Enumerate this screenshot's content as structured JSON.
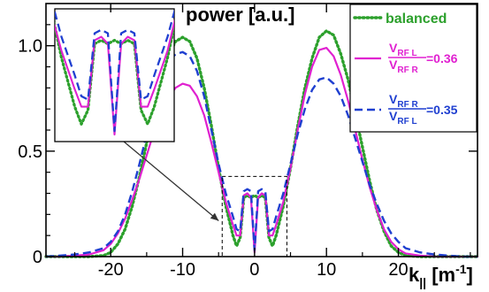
{
  "chart_data": {
    "type": "line",
    "title": "power [a.u.]",
    "xlabel": "k",
    "xlabel_sub": "||",
    "xlabel_unit_open": " [m",
    "xlabel_unit_sup": "-1",
    "xlabel_unit_close": "]",
    "ylabel": "",
    "xlim": [
      -29,
      31
    ],
    "ylim": [
      0,
      1.2
    ],
    "xticks": [
      -20,
      -10,
      0,
      10,
      20
    ],
    "yticks": [
      0,
      0.5,
      1.0
    ],
    "ytick_labels": [
      "0",
      "0.5",
      "1.0"
    ],
    "grid": false,
    "legend_position": "top-right",
    "colors": {
      "balanced": "#2ca02c",
      "ratio036": "#e020d0",
      "ratio035": "#1f3fd0",
      "annotation": "#333333"
    },
    "legend": {
      "balanced": "balanced",
      "ratio036": {
        "num_main": "V",
        "num_sub": "RF L",
        "den_main": "V",
        "den_sub": "RF R",
        "suffix": "=0.36"
      },
      "ratio035": {
        "num_main": "V",
        "num_sub": "RF R",
        "den_main": "V",
        "den_sub": "RF L",
        "suffix": "=0.35"
      }
    },
    "series": [
      {
        "key": "balanced",
        "name": "balanced",
        "style": "dotted",
        "x": [
          -29,
          -27,
          -25,
          -23,
          -21,
          -20,
          -19,
          -18,
          -17,
          -16,
          -15,
          -14,
          -13,
          -12,
          -11,
          -10,
          -9,
          -8,
          -7,
          -6,
          -5,
          -4,
          -3,
          -2.5,
          -2,
          -1.5,
          -1,
          -0.5,
          0,
          0.5,
          1,
          1.5,
          2,
          2.5,
          3,
          4,
          5,
          6,
          7,
          8,
          9,
          10,
          11,
          12,
          13,
          14,
          15,
          16,
          17,
          18,
          19,
          20,
          21,
          23,
          25,
          27,
          29,
          31
        ],
        "y": [
          0,
          0,
          0,
          0,
          0.005,
          0.02,
          0.06,
          0.13,
          0.24,
          0.38,
          0.54,
          0.7,
          0.84,
          0.95,
          1.02,
          1.04,
          1.02,
          0.94,
          0.8,
          0.62,
          0.42,
          0.24,
          0.1,
          0.05,
          0.09,
          0.28,
          0.29,
          0.28,
          0.29,
          0.28,
          0.29,
          0.28,
          0.09,
          0.05,
          0.1,
          0.24,
          0.42,
          0.62,
          0.8,
          0.94,
          1.04,
          1.07,
          1.05,
          0.96,
          0.84,
          0.68,
          0.52,
          0.36,
          0.22,
          0.12,
          0.05,
          0.02,
          0.005,
          0,
          0,
          0,
          0,
          0
        ]
      },
      {
        "key": "ratio036",
        "name": "V_RF L / V_RF R = 0.36",
        "style": "solid",
        "x": [
          -29,
          -27,
          -25,
          -23,
          -21,
          -20,
          -19,
          -18,
          -17,
          -16,
          -15,
          -14,
          -13,
          -12,
          -11,
          -10,
          -9,
          -8,
          -7,
          -6,
          -5,
          -4,
          -3,
          -2.5,
          -2,
          -1.5,
          -1,
          -0.5,
          0,
          0.5,
          1,
          1.5,
          2,
          2.5,
          3,
          4,
          5,
          6,
          7,
          8,
          9,
          10,
          11,
          12,
          13,
          14,
          15,
          16,
          17,
          18,
          19,
          20,
          21,
          23,
          25,
          27,
          29,
          31
        ],
        "y": [
          0,
          0,
          0.005,
          0.01,
          0.03,
          0.06,
          0.11,
          0.18,
          0.27,
          0.37,
          0.48,
          0.59,
          0.68,
          0.75,
          0.8,
          0.82,
          0.81,
          0.76,
          0.67,
          0.54,
          0.4,
          0.26,
          0.15,
          0.1,
          0.1,
          0.29,
          0.3,
          0.28,
          0.02,
          0.28,
          0.3,
          0.29,
          0.1,
          0.1,
          0.15,
          0.26,
          0.42,
          0.6,
          0.77,
          0.9,
          0.98,
          0.99,
          0.95,
          0.86,
          0.74,
          0.6,
          0.46,
          0.33,
          0.22,
          0.13,
          0.07,
          0.035,
          0.015,
          0.005,
          0,
          0,
          0,
          0
        ]
      },
      {
        "key": "ratio035",
        "name": "V_RF R / V_RF L = 0.35",
        "style": "dashed",
        "x": [
          -29,
          -27,
          -25,
          -23,
          -21,
          -20,
          -19,
          -18,
          -17,
          -16,
          -15,
          -14,
          -13,
          -12,
          -11,
          -10,
          -9,
          -8,
          -7,
          -6,
          -5,
          -4,
          -3,
          -2.5,
          -2,
          -1.5,
          -1,
          -0.5,
          0,
          0.5,
          1,
          1.5,
          2,
          2.5,
          3,
          4,
          5,
          6,
          7,
          8,
          9,
          10,
          11,
          12,
          13,
          14,
          15,
          16,
          17,
          18,
          19,
          20,
          21,
          23,
          25,
          27,
          29,
          31
        ],
        "y": [
          0,
          0.005,
          0.01,
          0.02,
          0.04,
          0.07,
          0.12,
          0.2,
          0.31,
          0.44,
          0.58,
          0.72,
          0.84,
          0.92,
          0.96,
          0.97,
          0.95,
          0.88,
          0.76,
          0.6,
          0.44,
          0.3,
          0.19,
          0.13,
          0.12,
          0.31,
          0.32,
          0.31,
          0.03,
          0.31,
          0.32,
          0.31,
          0.12,
          0.13,
          0.19,
          0.3,
          0.44,
          0.58,
          0.7,
          0.79,
          0.84,
          0.85,
          0.82,
          0.76,
          0.67,
          0.56,
          0.45,
          0.34,
          0.25,
          0.17,
          0.11,
          0.07,
          0.04,
          0.02,
          0.01,
          0.005,
          0,
          0
        ]
      }
    ],
    "inset": {
      "zoom_xlim": [
        -4.5,
        4.5
      ],
      "zoom_ylim": [
        0,
        0.38
      ]
    }
  }
}
